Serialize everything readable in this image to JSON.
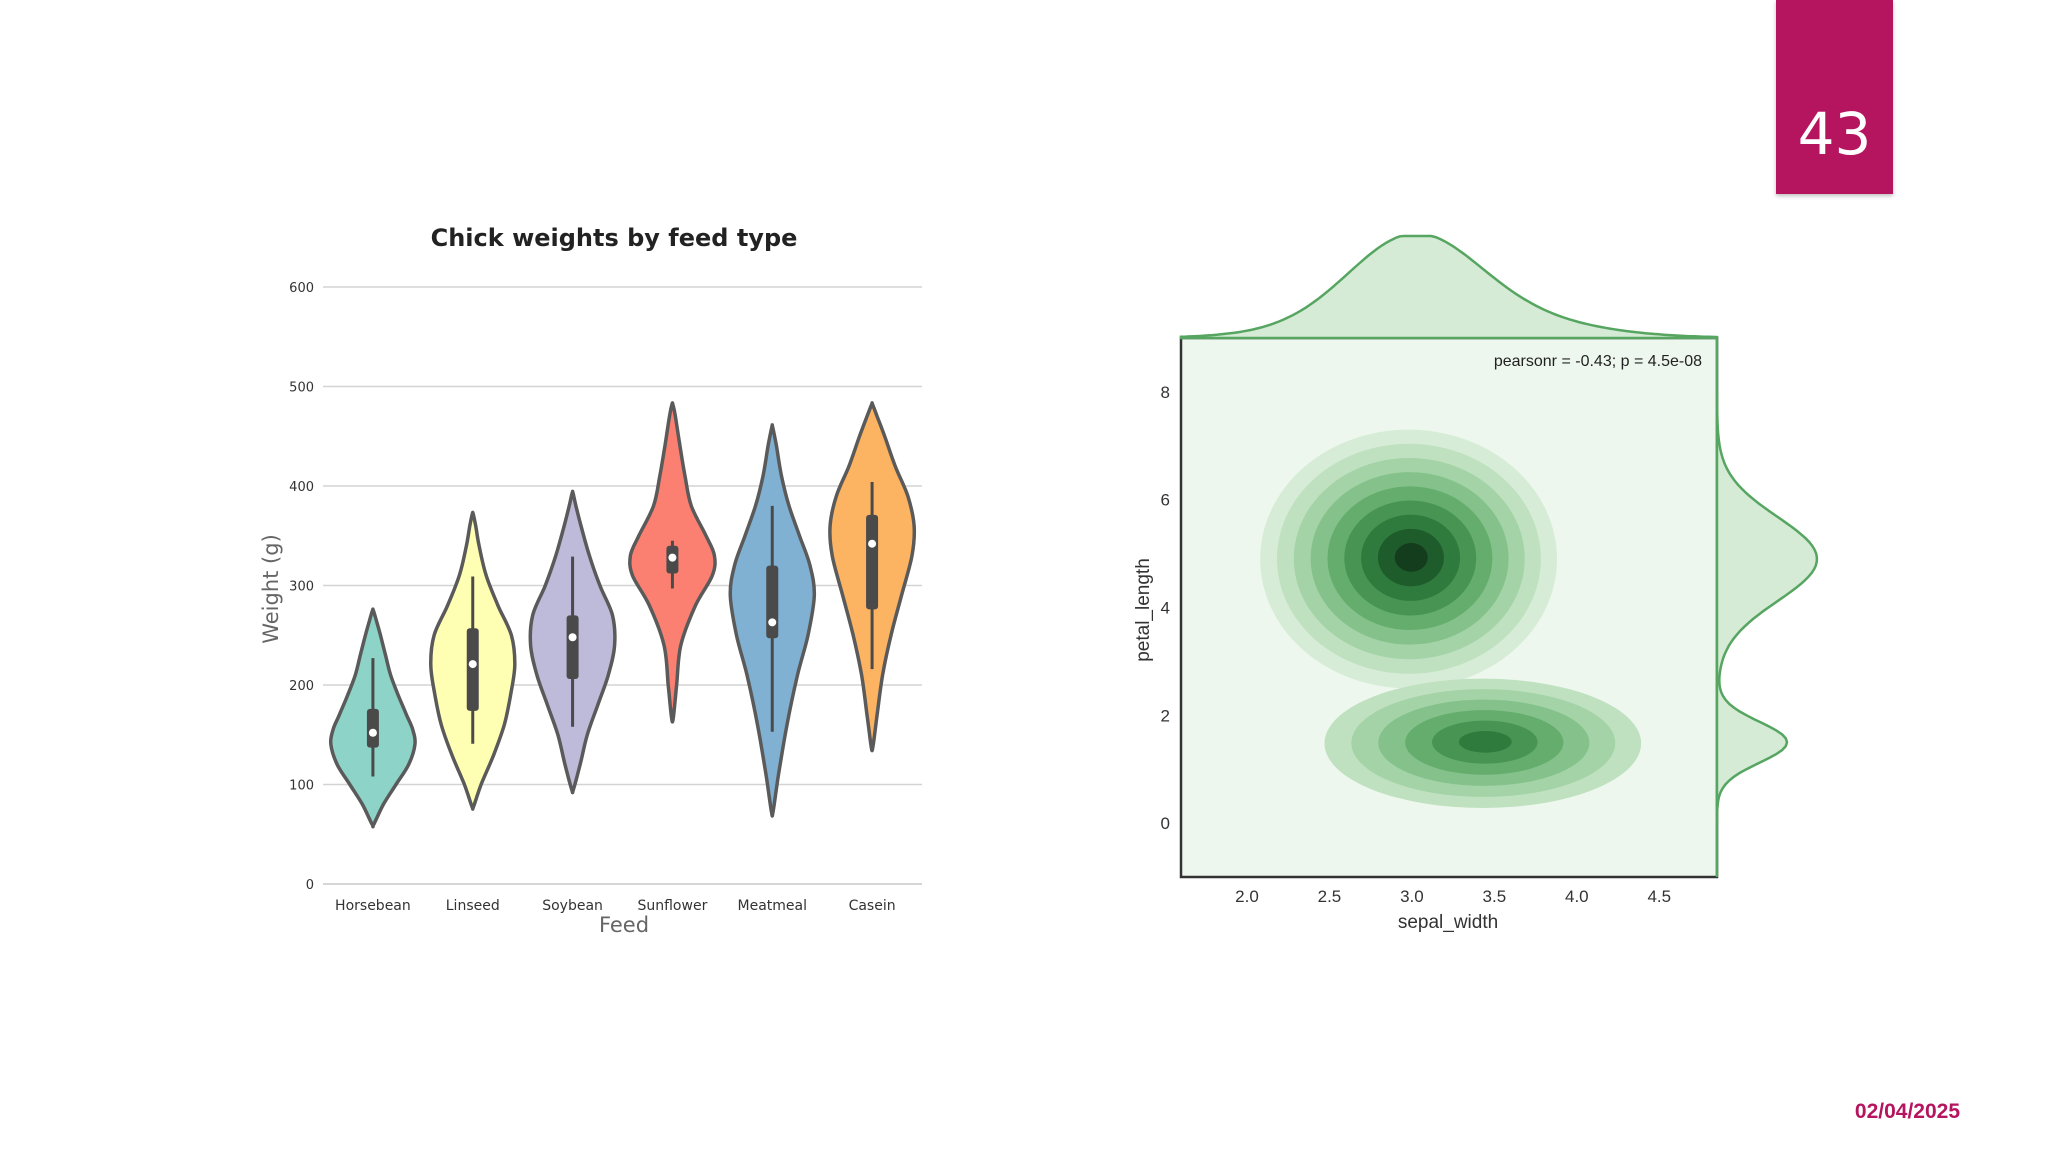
{
  "slide": {
    "number": "43",
    "date": "02/04/2025",
    "accent_color": "#b5145f"
  },
  "chart_data": [
    {
      "type": "violin",
      "title": "Chick weights by feed type",
      "xlabel": "Feed",
      "ylabel": "Weight (g)",
      "ylim": [
        0,
        600
      ],
      "yticks": [
        0,
        100,
        200,
        300,
        400,
        500,
        600
      ],
      "grid": true,
      "categories": [
        "Horsebean",
        "Linseed",
        "Soybean",
        "Sunflower",
        "Meatmeal",
        "Casein"
      ],
      "series": [
        {
          "category": "Horsebean",
          "color": "#8dd3c7",
          "min": 60,
          "max": 275,
          "q1": 137,
          "median": 152,
          "q3": 176,
          "whisker_low": 108,
          "whisker_high": 227,
          "profile": [
            [
              60,
              0.02
            ],
            [
              80,
              0.25
            ],
            [
              100,
              0.55
            ],
            [
              120,
              0.85
            ],
            [
              140,
              1.0
            ],
            [
              155,
              0.95
            ],
            [
              170,
              0.8
            ],
            [
              190,
              0.6
            ],
            [
              210,
              0.42
            ],
            [
              230,
              0.3
            ],
            [
              250,
              0.18
            ],
            [
              265,
              0.08
            ],
            [
              275,
              0.01
            ]
          ]
        },
        {
          "category": "Linseed",
          "color": "#ffffb3",
          "min": 78,
          "max": 372,
          "q1": 174,
          "median": 221,
          "q3": 257,
          "whisker_low": 141,
          "whisker_high": 309,
          "profile": [
            [
              78,
              0.02
            ],
            [
              100,
              0.2
            ],
            [
              130,
              0.5
            ],
            [
              160,
              0.75
            ],
            [
              190,
              0.9
            ],
            [
              220,
              1.0
            ],
            [
              250,
              0.92
            ],
            [
              280,
              0.6
            ],
            [
              310,
              0.32
            ],
            [
              340,
              0.15
            ],
            [
              360,
              0.07
            ],
            [
              372,
              0.01
            ]
          ]
        },
        {
          "category": "Soybean",
          "color": "#bebada",
          "min": 95,
          "max": 393,
          "q1": 206,
          "median": 248,
          "q3": 270,
          "whisker_low": 158,
          "whisker_high": 329,
          "profile": [
            [
              95,
              0.02
            ],
            [
              120,
              0.18
            ],
            [
              150,
              0.35
            ],
            [
              180,
              0.6
            ],
            [
              210,
              0.85
            ],
            [
              240,
              1.0
            ],
            [
              270,
              0.95
            ],
            [
              300,
              0.65
            ],
            [
              330,
              0.4
            ],
            [
              360,
              0.2
            ],
            [
              380,
              0.08
            ],
            [
              393,
              0.01
            ]
          ]
        },
        {
          "category": "Sunflower",
          "color": "#fb8072",
          "min": 167,
          "max": 482,
          "q1": 312,
          "median": 328,
          "q3": 340,
          "whisker_low": 297,
          "whisker_high": 345,
          "profile": [
            [
              167,
              0.02
            ],
            [
              200,
              0.1
            ],
            [
              240,
              0.2
            ],
            [
              280,
              0.55
            ],
            [
              310,
              0.95
            ],
            [
              330,
              1.0
            ],
            [
              350,
              0.8
            ],
            [
              380,
              0.45
            ],
            [
              410,
              0.3
            ],
            [
              440,
              0.18
            ],
            [
              470,
              0.07
            ],
            [
              482,
              0.01
            ]
          ]
        },
        {
          "category": "Meatmeal",
          "color": "#80b1d3",
          "min": 73,
          "max": 459,
          "q1": 247,
          "median": 263,
          "q3": 320,
          "whisker_low": 153,
          "whisker_high": 380,
          "profile": [
            [
              73,
              0.02
            ],
            [
              110,
              0.15
            ],
            [
              160,
              0.35
            ],
            [
              210,
              0.6
            ],
            [
              250,
              0.85
            ],
            [
              290,
              1.0
            ],
            [
              320,
              0.9
            ],
            [
              350,
              0.65
            ],
            [
              380,
              0.4
            ],
            [
              410,
              0.22
            ],
            [
              440,
              0.1
            ],
            [
              459,
              0.01
            ]
          ]
        },
        {
          "category": "Casein",
          "color": "#fdb462",
          "min": 138,
          "max": 482,
          "q1": 276,
          "median": 342,
          "q3": 371,
          "whisker_low": 216,
          "whisker_high": 404,
          "profile": [
            [
              138,
              0.02
            ],
            [
              170,
              0.12
            ],
            [
              210,
              0.25
            ],
            [
              250,
              0.45
            ],
            [
              290,
              0.7
            ],
            [
              330,
              0.95
            ],
            [
              360,
              1.0
            ],
            [
              390,
              0.85
            ],
            [
              420,
              0.55
            ],
            [
              450,
              0.3
            ],
            [
              470,
              0.12
            ],
            [
              482,
              0.01
            ]
          ]
        }
      ]
    },
    {
      "type": "kde-joint",
      "annotation": "pearsonr = -0.43; p = 4.5e-08",
      "xlabel": "sepal_width",
      "ylabel": "petal_length",
      "xlim": [
        1.6,
        4.85
      ],
      "ylim": [
        -1,
        9
      ],
      "xticks": [
        2.0,
        2.5,
        3.0,
        3.5,
        4.0,
        4.5
      ],
      "yticks": [
        0,
        2,
        4,
        6,
        8
      ],
      "color": "#56a561",
      "clusters": [
        {
          "cx": 2.98,
          "cy": 4.9,
          "sx": 0.45,
          "sy": 1.2,
          "levels": 9
        },
        {
          "cx": 3.43,
          "cy": 1.48,
          "sx": 0.48,
          "sy": 0.6,
          "levels": 6
        }
      ]
    }
  ]
}
